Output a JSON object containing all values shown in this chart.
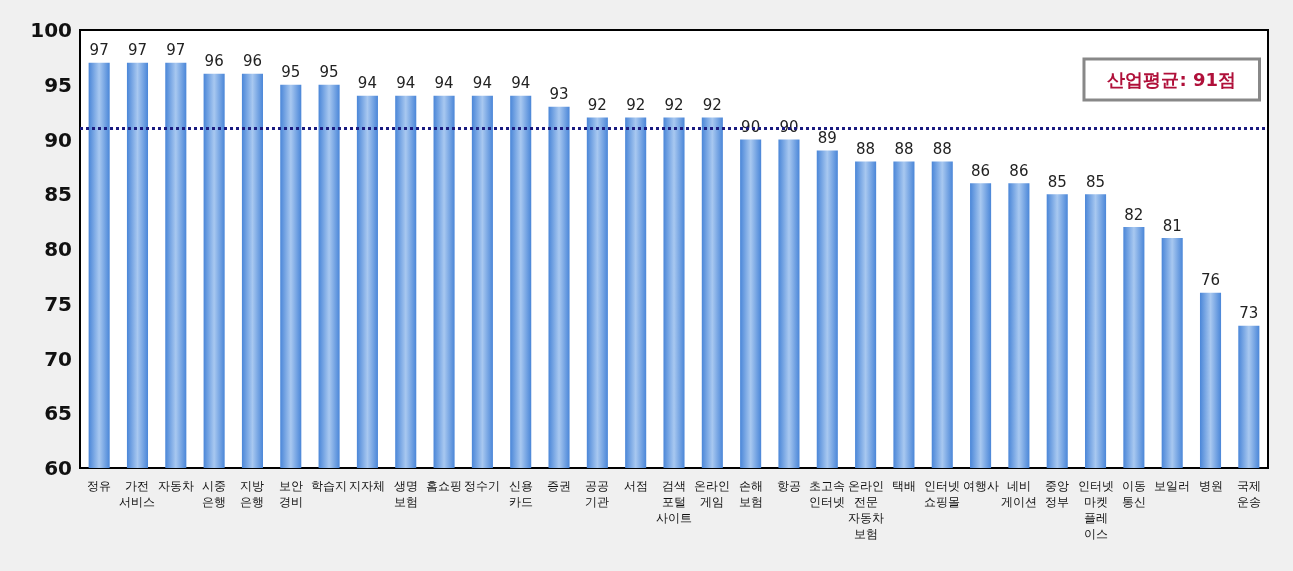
{
  "chart_data": {
    "type": "bar",
    "categories": [
      "정유",
      "가전\n서비스",
      "자동차",
      "시중\n은행",
      "지방\n은행",
      "보안\n경비",
      "학습지",
      "지자체",
      "생명\n보험",
      "홈쇼핑",
      "정수기",
      "신용\n카드",
      "증권",
      "공공\n기관",
      "서점",
      "검색\n포털\n사이트",
      "온라인\n게임",
      "손해\n보험",
      "항공",
      "초고속\n인터넷",
      "온라인\n전문\n자동차\n보험",
      "택배",
      "인터넷\n쇼핑몰",
      "여행사",
      "네비\n게이션",
      "중앙\n정부",
      "인터넷\n마켓\n플레\n이스",
      "이동\n통신",
      "보일러",
      "병원",
      "국제\n운송"
    ],
    "values": [
      97,
      97,
      97,
      96,
      96,
      95,
      95,
      94,
      94,
      94,
      94,
      94,
      93,
      92,
      92,
      92,
      92,
      90,
      90,
      89,
      88,
      88,
      88,
      86,
      86,
      85,
      85,
      82,
      81,
      76,
      73
    ],
    "color": "#4a86d8",
    "data_labels": true,
    "grid": false,
    "ylim": [
      60,
      100
    ],
    "yticks": [
      60,
      65,
      70,
      75,
      80,
      85,
      90,
      95,
      100
    ],
    "ref_lines": [
      {
        "axis": "y",
        "value": 91,
        "label": "산업평균: 91점",
        "color": "#1a1a80",
        "line_style": "dotted"
      }
    ]
  }
}
